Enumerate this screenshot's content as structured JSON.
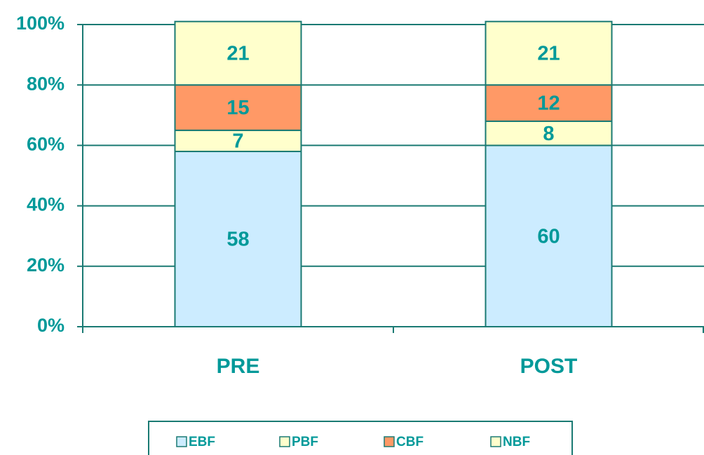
{
  "chart_data": {
    "type": "stacked_bar",
    "categories": [
      "PRE",
      "POST"
    ],
    "series": [
      {
        "name": "EBF",
        "color": "#ccecff",
        "values": [
          58,
          60
        ]
      },
      {
        "name": "PBF",
        "color": "#ffffcc",
        "values": [
          7,
          8
        ]
      },
      {
        "name": "CBF",
        "color": "#ff9966",
        "values": [
          15,
          12
        ]
      },
      {
        "name": "NBF",
        "color": "#ffffcc",
        "values": [
          21,
          21
        ]
      }
    ],
    "ylim": [
      0,
      100
    ],
    "yticks": [
      {
        "value": 0,
        "label": "0%"
      },
      {
        "value": 20,
        "label": "20%"
      },
      {
        "value": 40,
        "label": "40%"
      },
      {
        "value": 60,
        "label": "60%"
      },
      {
        "value": 80,
        "label": "80%"
      },
      {
        "value": 100,
        "label": "100%"
      }
    ],
    "grid": true,
    "legend": "bottom"
  }
}
